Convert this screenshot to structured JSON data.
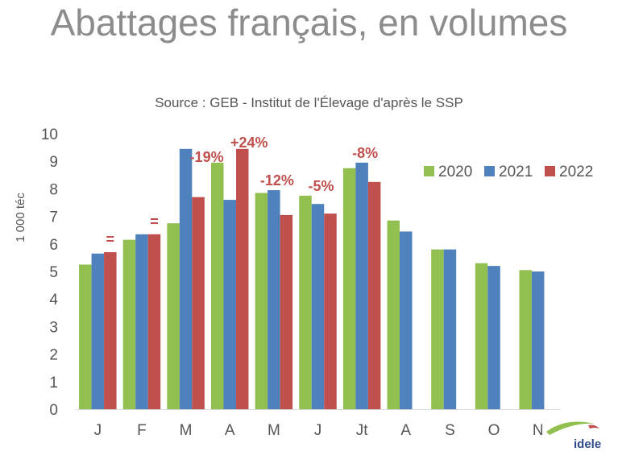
{
  "title": "Abattages français, en volumes",
  "subtitle": "Source : GEB - Institut de l'Élevage d'après le SSP",
  "logo_text": "idele",
  "colors": {
    "2020": "#92c050",
    "2021": "#4f81bd",
    "2022": "#c0504d",
    "annotation": "#c0504d"
  },
  "chart_data": {
    "type": "bar",
    "ylabel": "1 000 téc",
    "ylim": [
      0,
      10
    ],
    "yticks": [
      0,
      1,
      2,
      3,
      4,
      5,
      6,
      7,
      8,
      9,
      10
    ],
    "grid": false,
    "legend_position": "top-right",
    "categories": [
      "J",
      "F",
      "M",
      "A",
      "M",
      "J",
      "Jt",
      "A",
      "S",
      "O",
      "N"
    ],
    "series": [
      {
        "name": "2020",
        "values": [
          5.25,
          6.15,
          6.75,
          8.95,
          7.85,
          7.75,
          8.75,
          6.85,
          5.8,
          5.3,
          5.05
        ]
      },
      {
        "name": "2021",
        "values": [
          5.65,
          6.35,
          9.45,
          7.6,
          7.95,
          7.45,
          8.95,
          6.45,
          5.8,
          5.2,
          5.0
        ]
      },
      {
        "name": "2022",
        "values": [
          5.7,
          6.35,
          7.7,
          9.45,
          7.05,
          7.1,
          8.25,
          null,
          null,
          null,
          null
        ]
      }
    ],
    "annotations": [
      {
        "category_index": 0,
        "text": "="
      },
      {
        "category_index": 1,
        "text": "="
      },
      {
        "category_index": 2,
        "text": "-19%"
      },
      {
        "category_index": 3,
        "text": "+24%"
      },
      {
        "category_index": 4,
        "text": "-12%"
      },
      {
        "category_index": 5,
        "text": "-5%"
      },
      {
        "category_index": 6,
        "text": "-8%"
      }
    ]
  }
}
